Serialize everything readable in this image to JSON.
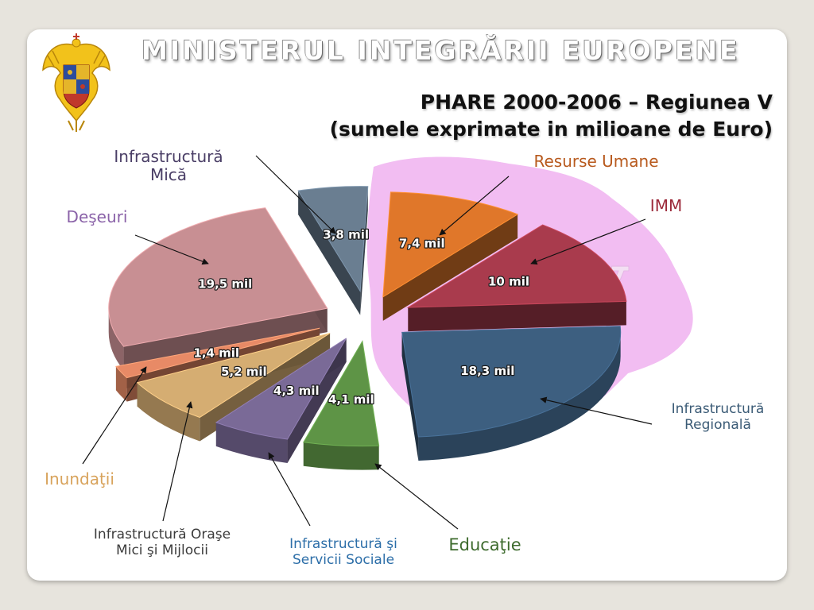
{
  "header": {
    "ministry": "MINISTERUL INTEGRĂRII EUROPENE",
    "title_line1": "PHARE 2000-2006 – Regiunea V",
    "title_line2": "(sumele exprimate in milioane de Euro)"
  },
  "map_letter": "V",
  "colors": {
    "background": "#e7e4dd",
    "map": "#f1b6f1"
  },
  "chart_data": {
    "type": "pie",
    "title": "PHARE 2000-2006 – Regiunea V",
    "subtitle": "(sumele exprimate in milioane de Euro)",
    "unit": "mil",
    "slices": [
      {
        "label": "Resurse Umane",
        "value": 7.4,
        "value_label": "7,4 mil",
        "color": "#e0772a",
        "label_color": "#b85a1e"
      },
      {
        "label": "IMM",
        "value": 10,
        "value_label": "10 mil",
        "color": "#a93b4d",
        "label_color": "#9c2a3a"
      },
      {
        "label": "Infrastructură Regională",
        "value": 18.3,
        "value_label": "18,3 mil",
        "color": "#3d5f80",
        "label_color": "#3b5b76"
      },
      {
        "label": "Educaţie",
        "value": 4.1,
        "value_label": "4,1 mil",
        "color": "#5e9446",
        "label_color": "#3e6b2e"
      },
      {
        "label": "Infrastructură şi Servicii Sociale",
        "value": 4.3,
        "value_label": "4,3 mil",
        "color": "#7a6a97",
        "label_color": "#2c6ea8"
      },
      {
        "label": "Infrastructură Oraşe Mici şi Mijlocii",
        "value": 5.2,
        "value_label": "5,2 mil",
        "color": "#d5ad72",
        "label_color": "#3c3c3c"
      },
      {
        "label": "Inundaţii",
        "value": 1.4,
        "value_label": "1,4 mil",
        "color": "#e88a66",
        "label_color": "#d8a35c"
      },
      {
        "label": "Deşeuri",
        "value": 19.5,
        "value_label": "19,5 mil",
        "color": "#c88f93",
        "label_color": "#8a62a8"
      },
      {
        "label": "Infrastructură Mică",
        "value": 3.8,
        "value_label": "3,8 mil",
        "color": "#6a7e91",
        "label_color": "#4a3e66"
      }
    ]
  }
}
